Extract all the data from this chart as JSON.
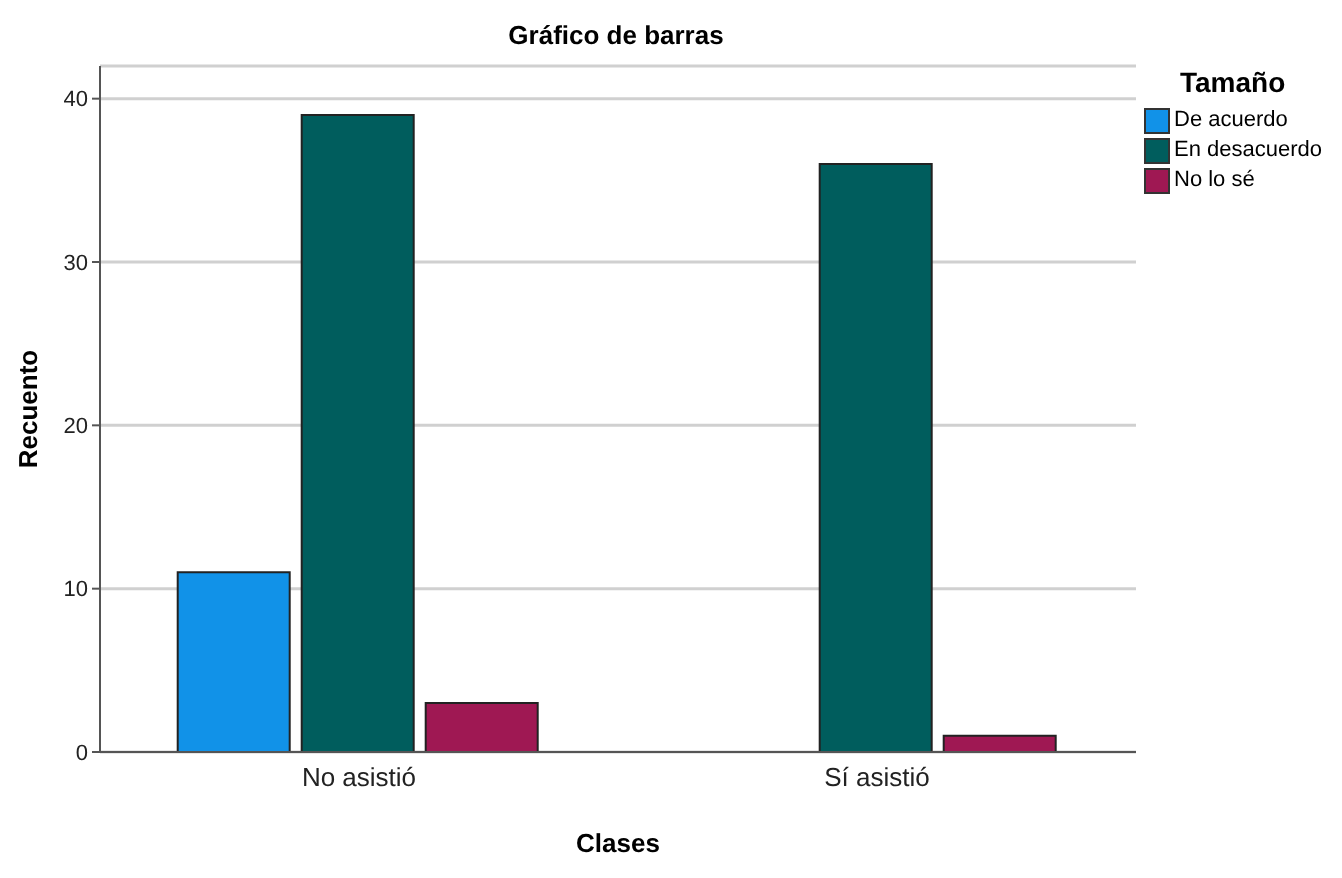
{
  "chart_data": {
    "type": "bar",
    "title": "Gráfico de barras",
    "xlabel": "Clases",
    "ylabel": "Recuento",
    "legend_title": "Tamaño",
    "categories": [
      "No asistió",
      "Sí asistió"
    ],
    "series": [
      {
        "name": "De acuerdo",
        "color": "#1192e8",
        "values": [
          11,
          0
        ]
      },
      {
        "name": "En desacuerdo",
        "color": "#005d5d",
        "values": [
          39,
          36
        ]
      },
      {
        "name": "No lo sé",
        "color": "#9f1853",
        "values": [
          3,
          1
        ]
      }
    ],
    "ylim": [
      0,
      42
    ],
    "yticks": [
      0,
      10,
      20,
      30,
      40
    ],
    "grid": "y",
    "legend": "top right"
  }
}
